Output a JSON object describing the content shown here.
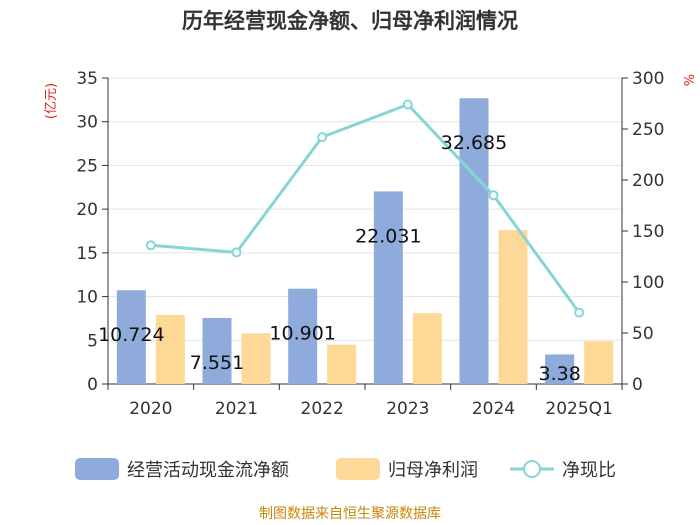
{
  "chart_data": {
    "type": "bar+line",
    "title": "历年经营现金净额、归母净利润情况",
    "categories": [
      "2020",
      "2021",
      "2022",
      "2023",
      "2024",
      "2025Q1"
    ],
    "series": [
      {
        "name": "经营活动现金流净额",
        "type": "bar",
        "axis": "left",
        "color": "#8eabdc",
        "values": [
          10.724,
          7.551,
          10.901,
          22.031,
          32.685,
          3.38
        ],
        "labels": [
          "10.724",
          "7.551",
          "10.901",
          "22.031",
          "32.685",
          "3.38"
        ]
      },
      {
        "name": "归母净利润",
        "type": "bar",
        "axis": "left",
        "color": "#fdd897",
        "values": [
          7.9,
          5.8,
          4.5,
          8.1,
          17.6,
          4.9
        ]
      },
      {
        "name": "净现比",
        "type": "line",
        "axis": "right",
        "color": "#87d5d5",
        "values": [
          136,
          129,
          242,
          274,
          185,
          70
        ]
      }
    ],
    "y_left": {
      "unit_label": "(亿元)",
      "min": 0,
      "max": 35,
      "ticks": [
        "0",
        "5",
        "10",
        "15",
        "20",
        "25",
        "30",
        "35"
      ]
    },
    "y_right": {
      "unit_label": "%",
      "min": 0,
      "max": 300,
      "ticks": [
        "0",
        "50",
        "100",
        "150",
        "200",
        "250",
        "300"
      ]
    },
    "grid": true,
    "legend_position": "bottom"
  },
  "footer": "制图数据来自恒生聚源数据库"
}
